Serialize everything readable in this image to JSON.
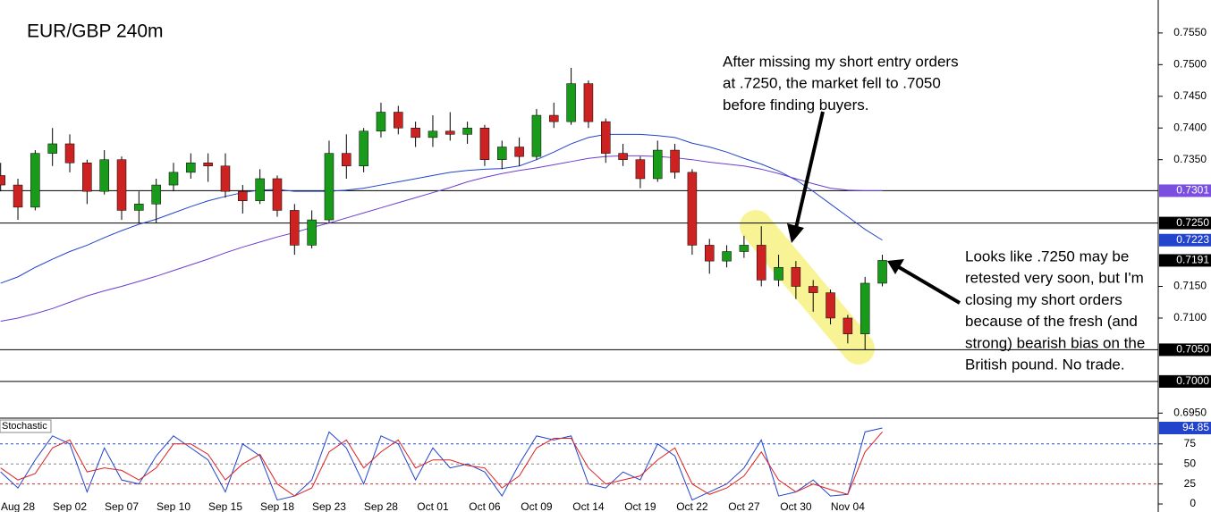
{
  "chart_data": [
    {
      "type": "candlestick",
      "title": "EUR/GBP 240m",
      "categories": [
        null,
        "Aug 28",
        null,
        null,
        "Sep 02",
        null,
        null,
        "Sep 07",
        null,
        null,
        "Sep 10",
        null,
        null,
        "Sep 15",
        null,
        null,
        "Sep 18",
        null,
        null,
        "Sep 23",
        null,
        null,
        "Sep 28",
        null,
        null,
        "Oct 01",
        null,
        null,
        "Oct 06",
        null,
        null,
        "Oct 09",
        null,
        null,
        "Oct 14",
        null,
        null,
        "Oct 19",
        null,
        null,
        "Oct 22",
        null,
        null,
        "Oct 27",
        null,
        null,
        "Oct 30",
        null,
        null,
        "Nov 04",
        null,
        null
      ],
      "open": [
        0.7325,
        0.731,
        0.7275,
        0.736,
        0.7375,
        0.7345,
        0.73,
        0.735,
        0.727,
        0.728,
        0.731,
        0.733,
        0.7345,
        0.734,
        0.73,
        0.7285,
        0.732,
        0.727,
        0.7215,
        0.7255,
        0.736,
        0.734,
        0.7395,
        0.7425,
        0.74,
        0.7385,
        0.7395,
        0.739,
        0.74,
        0.735,
        0.737,
        0.7355,
        0.742,
        0.741,
        0.747,
        0.741,
        0.736,
        0.735,
        0.732,
        0.7365,
        0.733,
        0.7215,
        0.719,
        0.7205,
        0.7215,
        0.716,
        0.718,
        0.715,
        0.714,
        0.71,
        0.7075,
        0.7155
      ],
      "high": [
        0.7345,
        0.732,
        0.7365,
        0.74,
        0.739,
        0.735,
        0.7365,
        0.7355,
        0.73,
        0.732,
        0.7345,
        0.736,
        0.736,
        0.736,
        0.731,
        0.7335,
        0.7325,
        0.728,
        0.727,
        0.738,
        0.739,
        0.74,
        0.744,
        0.7435,
        0.741,
        0.742,
        0.7425,
        0.741,
        0.7405,
        0.738,
        0.7385,
        0.743,
        0.744,
        0.7495,
        0.7475,
        0.7415,
        0.7375,
        0.7355,
        0.738,
        0.7375,
        0.7335,
        0.7225,
        0.7215,
        0.723,
        0.7245,
        0.72,
        0.719,
        0.716,
        0.7145,
        0.7105,
        0.7165,
        0.72
      ],
      "low": [
        0.73,
        0.7255,
        0.727,
        0.734,
        0.733,
        0.728,
        0.7295,
        0.7255,
        0.725,
        0.725,
        0.73,
        0.732,
        0.7315,
        0.729,
        0.7265,
        0.728,
        0.726,
        0.72,
        0.721,
        0.725,
        0.732,
        0.733,
        0.7385,
        0.739,
        0.737,
        0.737,
        0.738,
        0.7375,
        0.734,
        0.7335,
        0.734,
        0.735,
        0.74,
        0.7405,
        0.74,
        0.7345,
        0.734,
        0.7305,
        0.7315,
        0.732,
        0.72,
        0.717,
        0.718,
        0.7195,
        0.715,
        0.715,
        0.713,
        0.711,
        0.709,
        0.706,
        0.705,
        0.715
      ],
      "close": [
        0.731,
        0.7275,
        0.736,
        0.7375,
        0.7345,
        0.73,
        0.735,
        0.727,
        0.728,
        0.731,
        0.733,
        0.7345,
        0.734,
        0.73,
        0.7285,
        0.732,
        0.727,
        0.7215,
        0.7255,
        0.736,
        0.734,
        0.7395,
        0.7425,
        0.74,
        0.7385,
        0.7395,
        0.739,
        0.74,
        0.735,
        0.737,
        0.7355,
        0.742,
        0.741,
        0.747,
        0.741,
        0.736,
        0.735,
        0.732,
        0.7365,
        0.733,
        0.7215,
        0.719,
        0.7205,
        0.7215,
        0.716,
        0.718,
        0.715,
        0.714,
        0.71,
        0.7075,
        0.7155,
        0.7191
      ],
      "up_color": "#1a9a1a",
      "down_color": "#cc2222",
      "moving_averages": [
        {
          "color": "#2244cc",
          "values": [
            0.7155,
            0.7165,
            0.718,
            0.7193,
            0.7205,
            0.7215,
            0.7227,
            0.7238,
            0.7248,
            0.7256,
            0.7266,
            0.7276,
            0.7285,
            0.7292,
            0.7298,
            0.7302,
            0.7303,
            0.73,
            0.73,
            0.73,
            0.7302,
            0.7305,
            0.731,
            0.7315,
            0.732,
            0.7325,
            0.733,
            0.7333,
            0.7335,
            0.7336,
            0.734,
            0.735,
            0.7362,
            0.7375,
            0.7385,
            0.739,
            0.739,
            0.739,
            0.7388,
            0.7385,
            0.7376,
            0.737,
            0.7362,
            0.7352,
            0.7343,
            0.7332,
            0.7318,
            0.73,
            0.728,
            0.726,
            0.724,
            0.7223
          ]
        },
        {
          "color": "#6a3fd0",
          "values": [
            0.7095,
            0.71,
            0.7107,
            0.7115,
            0.7125,
            0.7135,
            0.7143,
            0.715,
            0.7158,
            0.7166,
            0.7175,
            0.7184,
            0.7193,
            0.7203,
            0.7212,
            0.722,
            0.7228,
            0.7235,
            0.7243,
            0.725,
            0.7258,
            0.7266,
            0.7274,
            0.7282,
            0.729,
            0.7298,
            0.7306,
            0.7315,
            0.7322,
            0.7328,
            0.7333,
            0.7337,
            0.7342,
            0.7347,
            0.7352,
            0.7355,
            0.7356,
            0.7356,
            0.7355,
            0.7353,
            0.735,
            0.7346,
            0.7343,
            0.734,
            0.7335,
            0.7328,
            0.732,
            0.7312,
            0.7305,
            0.7302,
            0.7301,
            0.7301
          ]
        }
      ],
      "levels": {
        "values": [
          0.7301,
          0.725,
          0.705,
          0.7
        ],
        "value_labels": [
          "0.7301",
          "0.7250",
          "0.7050",
          "0.7000"
        ],
        "colors": [
          "#7a4fe0",
          "#000000",
          "#000000",
          "#000000"
        ]
      },
      "ylim": [
        0.6942,
        0.7602
      ],
      "yticks": [
        {
          "value": 0.755,
          "label": "0.7550"
        },
        {
          "value": 0.75,
          "label": "0.7500"
        },
        {
          "value": 0.745,
          "label": "0.7450"
        },
        {
          "value": 0.74,
          "label": "0.7400"
        },
        {
          "value": 0.735,
          "label": "0.7350"
        },
        {
          "value": 0.715,
          "label": "0.7150"
        },
        {
          "value": 0.71,
          "label": "0.7100"
        },
        {
          "value": 0.695,
          "label": "0.6950"
        }
      ],
      "annotations": [
        {
          "lines": [
            "After missing my short entry orders",
            "at .7250, the market fell to .7050",
            "before finding buyers."
          ]
        },
        {
          "lines": [
            "Looks like .7250 may be",
            "retested very soon, but I'm",
            "closing my short orders",
            "because of the fresh (and",
            "strong) bearish bias on the",
            "British pound. No trade."
          ]
        }
      ]
    },
    {
      "type": "line",
      "title": "Stochastic",
      "series": [
        {
          "color": "#2244cc",
          "values": [
            40,
            20,
            55,
            85,
            75,
            15,
            70,
            30,
            25,
            60,
            85,
            70,
            55,
            15,
            75,
            60,
            5,
            10,
            30,
            90,
            70,
            25,
            85,
            75,
            30,
            70,
            45,
            50,
            40,
            10,
            50,
            85,
            80,
            85,
            25,
            20,
            40,
            30,
            75,
            60,
            5,
            15,
            25,
            45,
            80,
            10,
            15,
            30,
            10,
            12,
            90,
            94.85
          ]
        },
        {
          "color": "#dd2222",
          "values": [
            45,
            30,
            38,
            70,
            80,
            40,
            45,
            42,
            30,
            45,
            75,
            75,
            62,
            30,
            50,
            62,
            25,
            10,
            20,
            65,
            80,
            45,
            65,
            80,
            45,
            55,
            55,
            48,
            45,
            20,
            35,
            70,
            82,
            82,
            45,
            25,
            30,
            35,
            55,
            70,
            25,
            12,
            20,
            35,
            65,
            30,
            15,
            25,
            18,
            12,
            65,
            90
          ]
        }
      ],
      "ylim": [
        -10,
        106
      ],
      "yticks": [
        75,
        50,
        25,
        0
      ],
      "grid_colors": [
        "#2a4fd0",
        "#888888",
        "#d03030"
      ]
    }
  ]
}
